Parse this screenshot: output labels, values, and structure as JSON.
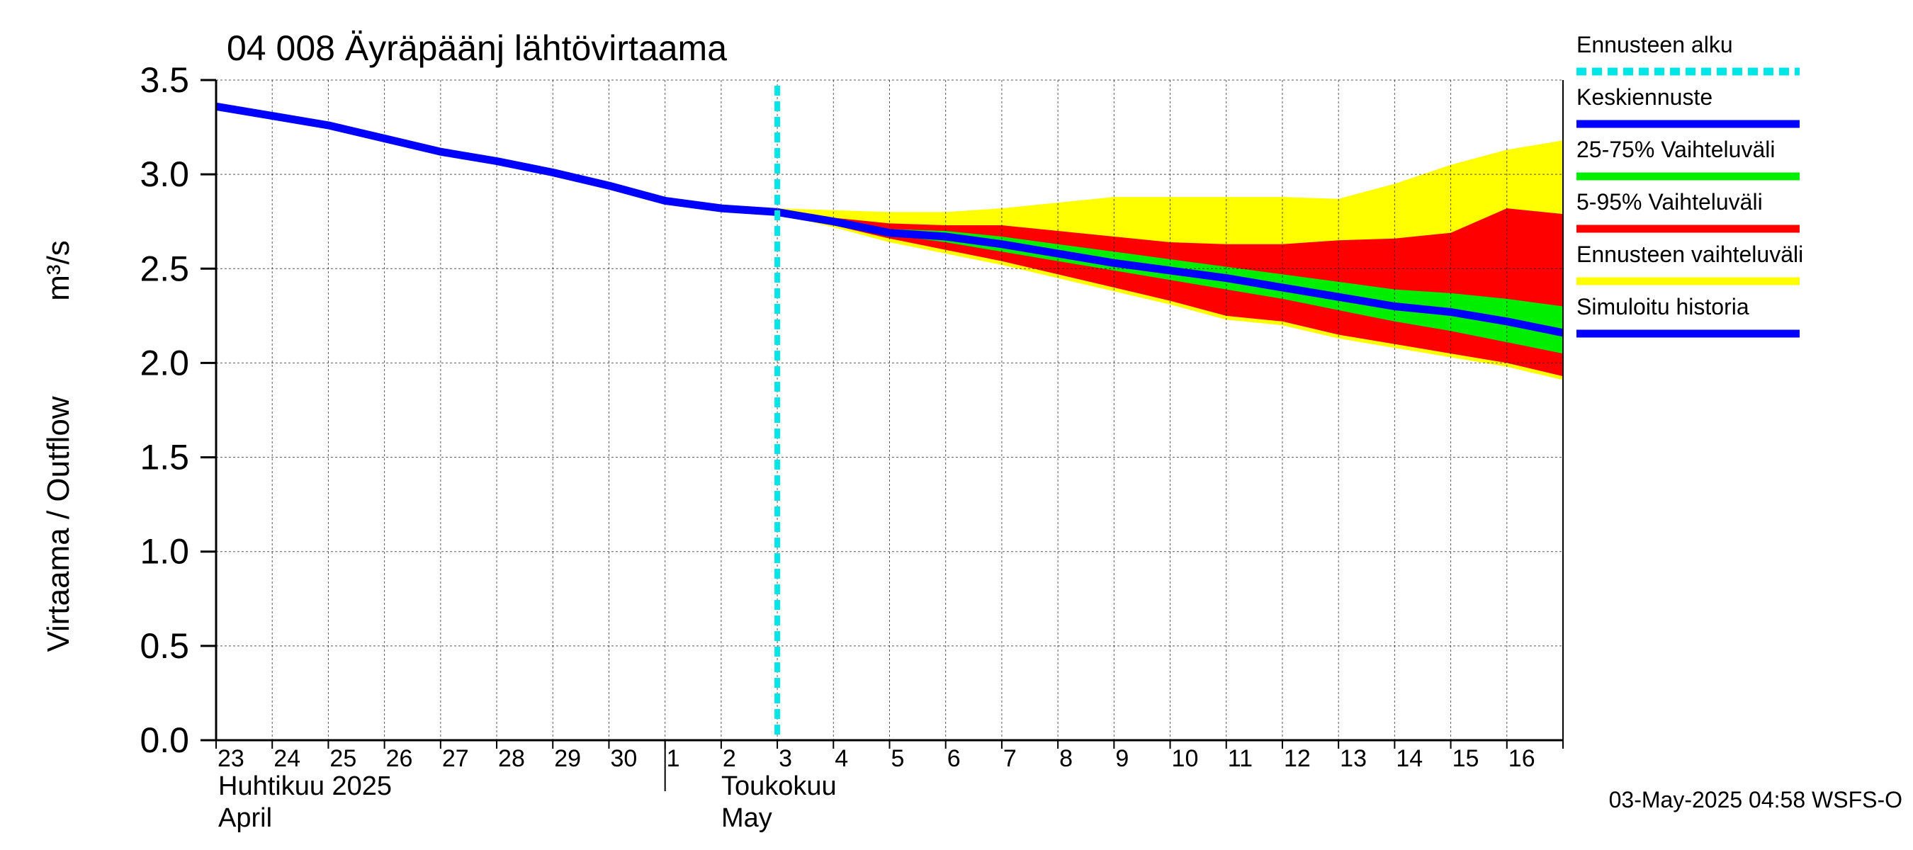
{
  "chart_data": {
    "type": "area",
    "title": "04 008 Äyräpäänj lähtövirtaama",
    "ylabel_left": "Virtaama / Outflow",
    "ylabel_right": "m³/s",
    "ylim": [
      0.0,
      3.5
    ],
    "ytick_labels": [
      "0.0",
      "0.5",
      "1.0",
      "1.5",
      "2.0",
      "2.5",
      "3.0",
      "3.5"
    ],
    "ytick_values": [
      0.0,
      0.5,
      1.0,
      1.5,
      2.0,
      2.5,
      3.0,
      3.5
    ],
    "x_range_days": [
      0,
      24
    ],
    "x_day_labels": [
      "23",
      "24",
      "25",
      "26",
      "27",
      "28",
      "29",
      "30",
      "1",
      "2",
      "3",
      "4",
      "5",
      "6",
      "7",
      "8",
      "9",
      "10",
      "11",
      "12",
      "13",
      "14",
      "15",
      "16"
    ],
    "month_labels": {
      "april_fi": "Huhtikuu  2025",
      "april_en": "April",
      "may_fi": "Toukokuu",
      "may_en": "May"
    },
    "forecast_start_day": 10,
    "series": [
      {
        "name": "Simuloitu historia",
        "x": [
          0,
          1,
          2,
          3,
          4,
          5,
          6,
          7,
          8,
          9,
          10
        ],
        "values": [
          3.36,
          3.31,
          3.26,
          3.19,
          3.12,
          3.07,
          3.01,
          2.94,
          2.86,
          2.82,
          2.8
        ]
      },
      {
        "name": "Keskiennuste",
        "x": [
          10,
          11,
          12,
          13,
          14,
          15,
          16,
          17,
          18,
          19,
          20,
          21,
          22,
          23,
          24
        ],
        "values": [
          2.8,
          2.75,
          2.69,
          2.67,
          2.63,
          2.58,
          2.53,
          2.49,
          2.45,
          2.4,
          2.35,
          2.3,
          2.27,
          2.22,
          2.16
        ]
      }
    ],
    "bands": [
      {
        "name": "Ennusteen vaihteluväli",
        "x": [
          10,
          11,
          12,
          13,
          14,
          15,
          16,
          17,
          18,
          19,
          20,
          21,
          22,
          23,
          24
        ],
        "upper": [
          2.82,
          2.81,
          2.8,
          2.8,
          2.82,
          2.85,
          2.88,
          2.88,
          2.88,
          2.88,
          2.87,
          2.95,
          3.05,
          3.13,
          3.18
        ],
        "lower": [
          2.79,
          2.72,
          2.64,
          2.58,
          2.52,
          2.45,
          2.38,
          2.31,
          2.23,
          2.2,
          2.13,
          2.08,
          2.03,
          1.98,
          1.91
        ]
      },
      {
        "name": "5-95% Vaihteluväli",
        "x": [
          10,
          11,
          12,
          13,
          14,
          15,
          16,
          17,
          18,
          19,
          20,
          21,
          22,
          23,
          24
        ],
        "upper": [
          2.81,
          2.77,
          2.74,
          2.73,
          2.73,
          2.7,
          2.67,
          2.64,
          2.63,
          2.63,
          2.65,
          2.66,
          2.69,
          2.82,
          2.79
        ],
        "lower": [
          2.8,
          2.73,
          2.66,
          2.6,
          2.54,
          2.47,
          2.4,
          2.33,
          2.25,
          2.22,
          2.15,
          2.1,
          2.05,
          2.0,
          1.93
        ]
      },
      {
        "name": "25-75% Vaihteluväli",
        "x": [
          10,
          11,
          12,
          13,
          14,
          15,
          16,
          17,
          18,
          19,
          20,
          21,
          22,
          23,
          24
        ],
        "upper": [
          2.8,
          2.76,
          2.71,
          2.7,
          2.67,
          2.63,
          2.59,
          2.55,
          2.51,
          2.47,
          2.43,
          2.39,
          2.37,
          2.34,
          2.3
        ],
        "lower": [
          2.8,
          2.74,
          2.68,
          2.64,
          2.59,
          2.54,
          2.49,
          2.44,
          2.39,
          2.34,
          2.28,
          2.22,
          2.17,
          2.11,
          2.05
        ]
      }
    ],
    "legend": [
      {
        "label": "Ennusteen alku",
        "color": "#00e5e5",
        "style": "dashed"
      },
      {
        "label": "Keskiennuste",
        "color": "#0000ff",
        "style": "solid"
      },
      {
        "label": "25-75% Vaihteluväli",
        "color": "#00ee00",
        "style": "solid"
      },
      {
        "label": "5-95% Vaihteluväli",
        "color": "#ff0000",
        "style": "solid"
      },
      {
        "label": "Ennusteen vaihteluväli",
        "color": "#ffff00",
        "style": "solid"
      },
      {
        "label": "Simuloitu historia",
        "color": "#0000ff",
        "style": "solid"
      }
    ],
    "footer": "03-May-2025 04:58 WSFS-O",
    "colors": {
      "yellow": "#ffff00",
      "red": "#ff0000",
      "green": "#00ee00",
      "blue": "#0000ff",
      "cyan": "#00e5e5"
    }
  }
}
